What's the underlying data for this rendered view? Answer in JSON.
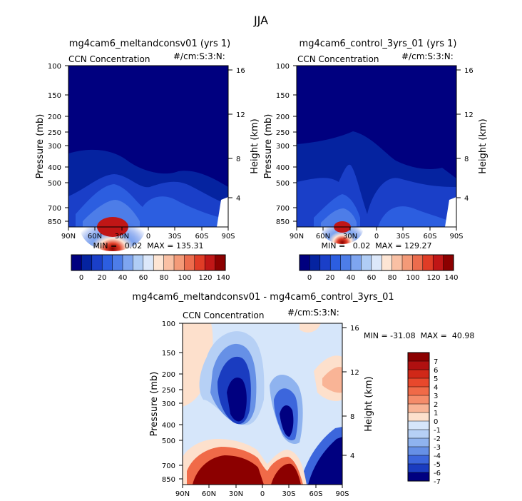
{
  "figure": {
    "title": "JJA",
    "bottom_title": "mg4cam6_meltandconsv01 - mg4cam6_control_3yrs_01"
  },
  "chart_data": [
    {
      "type": "heatmap",
      "title": "mg4cam6_meltandconsv01 (yrs 1)",
      "left_label": "CCN Concentration",
      "right_label": "#/cm:S:3:N:",
      "ylabel": "Pressure (mb)",
      "ylabel_right": "Height (km)",
      "x_ticks": [
        "90N",
        "60N",
        "30N",
        "0",
        "30S",
        "60S",
        "90S"
      ],
      "y_ticks": [
        "100",
        "150",
        "200",
        "250",
        "300",
        "400",
        "500",
        "700",
        "850"
      ],
      "y_ticks_right": [
        "16",
        "12",
        "8",
        "4"
      ],
      "stats_label": "MIN =   0.02  MAX = 135.31",
      "min": 0.02,
      "max": 135.31,
      "colorbar_ticks": [
        "0",
        "20",
        "40",
        "60",
        "80",
        "100",
        "120",
        "140"
      ],
      "colorbar_colors": [
        "#00007f",
        "#0523a0",
        "#1a3fc8",
        "#2c5ee0",
        "#4d7de8",
        "#7ea5f0",
        "#b0cdf5",
        "#dce8fa",
        "#fde5d4",
        "#f9c0a4",
        "#f49a78",
        "#ec6c4d",
        "#e03c26",
        "#c01616",
        "#8c0000"
      ]
    },
    {
      "type": "heatmap",
      "title": "mg4cam6_control_3yrs_01 (yrs 1)",
      "left_label": "CCN Concentration",
      "right_label": "#/cm:S:3:N:",
      "ylabel": "Pressure (mb)",
      "ylabel_right": "Height (km)",
      "x_ticks": [
        "90N",
        "60N",
        "30N",
        "0",
        "30S",
        "60S",
        "90S"
      ],
      "y_ticks": [
        "100",
        "150",
        "200",
        "250",
        "300",
        "400",
        "500",
        "700",
        "850"
      ],
      "y_ticks_right": [
        "16",
        "12",
        "8",
        "4"
      ],
      "stats_label": "MIN =   0.02  MAX = 129.27",
      "min": 0.02,
      "max": 129.27,
      "colorbar_ticks": [
        "0",
        "20",
        "40",
        "60",
        "80",
        "100",
        "120",
        "140"
      ]
    },
    {
      "type": "heatmap",
      "title": "mg4cam6_meltandconsv01 - mg4cam6_control_3yrs_01",
      "left_label": "CCN Concentration",
      "right_label": "#/cm:S:3:N:",
      "ylabel": "Pressure (mb)",
      "ylabel_right": "Height (km)",
      "x_ticks": [
        "90N",
        "60N",
        "30N",
        "0",
        "30S",
        "60S",
        "90S"
      ],
      "y_ticks": [
        "100",
        "150",
        "200",
        "250",
        "300",
        "400",
        "500",
        "700",
        "850"
      ],
      "y_ticks_right": [
        "16",
        "12",
        "8",
        "4"
      ],
      "stats_label": "MIN = -31.08  MAX =  40.98",
      "min": -31.08,
      "max": 40.98,
      "colorbar_ticks": [
        "7",
        "6",
        "5",
        "4",
        "3",
        "2",
        "1",
        "0",
        "-1",
        "-2",
        "-3",
        "-4",
        "-5",
        "-6",
        "-7"
      ],
      "colorbar_colors": [
        "#8c0000",
        "#b01010",
        "#d02818",
        "#e8482c",
        "#f06a48",
        "#f58c6a",
        "#f9b496",
        "#fde0cc",
        "#d6e6fa",
        "#b6d0f5",
        "#8fb3ef",
        "#6690e6",
        "#3c66dc",
        "#1a3cc0",
        "#000080"
      ]
    }
  ]
}
